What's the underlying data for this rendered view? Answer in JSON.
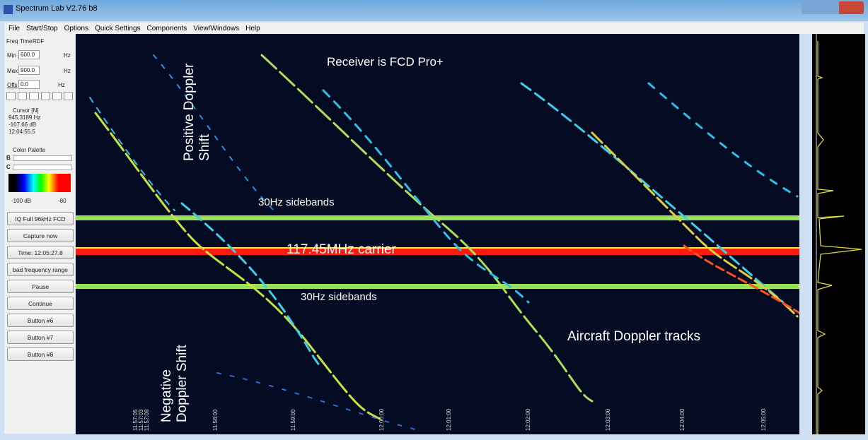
{
  "window": {
    "title": "Spectrum Lab V2.76 b8"
  },
  "menu": [
    "File",
    "Start/Stop",
    "Options",
    "Quick Settings",
    "Components",
    "View/Windows",
    "Help"
  ],
  "left_panel": {
    "tabs": [
      "Freq",
      "Time",
      "RDF"
    ],
    "min_label": "Min",
    "min_value": "600.0",
    "max_label": "Max",
    "max_value": "900.0",
    "unit": "Hz",
    "offs_label": "Offs",
    "offs_value": "0.0",
    "cursor": {
      "title": "Cursor [N]",
      "freq": "945.3189 Hz",
      "level": "-107.66 dB",
      "time": "12:04:55.5"
    },
    "palette": {
      "title": "Color Palette",
      "b": "B",
      "c": "C",
      "min": "-100 dB",
      "max": "-80"
    },
    "buttons": [
      "IQ Full 96kHz FCD",
      "Capture now",
      "Time: 12:05:27.8",
      "bad frequency range",
      "Pause",
      "Continue",
      "Button #6",
      "Button #7",
      "Button #8"
    ]
  },
  "waterfall": {
    "annotations": {
      "receiver": "Receiver is FCD Pro+",
      "positive": "Positive Doppler Shift",
      "upper_sidebands": "30Hz sidebands",
      "carrier": "117.45MHz carrier",
      "lower_sidebands": "30Hz sidebands",
      "negative": "Negative Doppler Shift",
      "tracks": "Aircraft Doppler tracks"
    },
    "time_labels": [
      "11:57:05",
      "11:57:03",
      "11:57:08",
      "11:58:00",
      "11:59:00",
      "12:00:00",
      "12:01:00",
      "12:02:00",
      "12:03:00",
      "12:04:00",
      "12:05:00"
    ]
  }
}
